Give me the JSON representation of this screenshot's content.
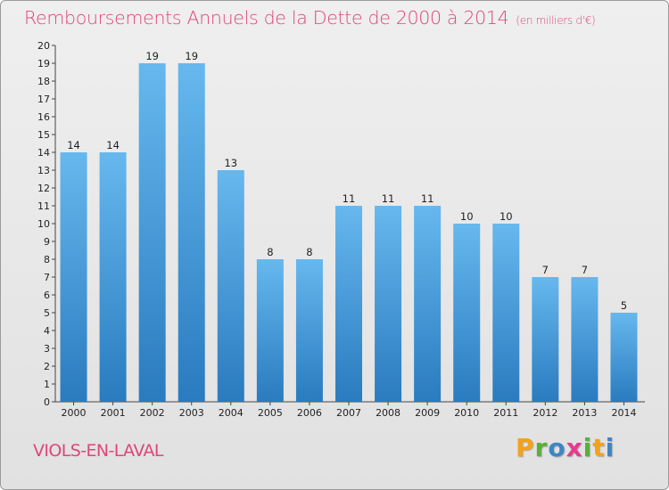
{
  "header": {
    "title": "Remboursements Annuels de la Dette de 2000 à 2014",
    "unit": "(en milliers d'€)"
  },
  "footer": {
    "commune": "VIOLS-EN-LAVAL",
    "logo_letters": [
      "P",
      "r",
      "o",
      "x",
      "i",
      "t",
      "i"
    ],
    "logo_colors": [
      "#f2a21b",
      "#5cae3a",
      "#3d86c6",
      "#e63a8e",
      "#5cae3a",
      "#f2a21b",
      "#3d86c6"
    ]
  },
  "colors": {
    "bar_top": "#66b8ee",
    "bar_bottom": "#2a7bbf",
    "title": "#e0457a"
  },
  "chart_data": {
    "type": "bar",
    "title": "Remboursements Annuels de la Dette de 2000 à 2014",
    "xlabel": "",
    "ylabel": "",
    "categories": [
      "2000",
      "2001",
      "2002",
      "2003",
      "2004",
      "2005",
      "2006",
      "2007",
      "2008",
      "2009",
      "2010",
      "2011",
      "2012",
      "2013",
      "2014"
    ],
    "values": [
      14,
      14,
      19,
      19,
      13,
      8,
      8,
      11,
      11,
      11,
      10,
      10,
      7,
      7,
      5
    ],
    "ylim": [
      0,
      20
    ],
    "yticks": [
      0,
      1,
      2,
      3,
      4,
      5,
      6,
      7,
      8,
      9,
      10,
      11,
      12,
      13,
      14,
      15,
      16,
      17,
      18,
      19,
      20
    ],
    "grid": false,
    "legend": "none"
  }
}
